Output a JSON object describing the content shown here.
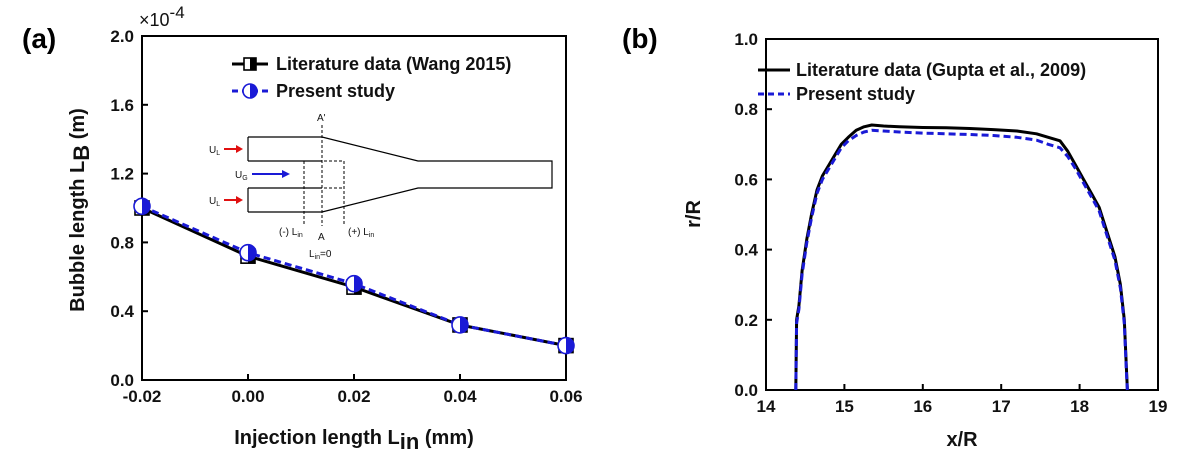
{
  "chart_data": [
    {
      "panel": "(a)",
      "type": "line",
      "xlabel": "Injection length",
      "xlabel_symbol": "L",
      "xlabel_sub": "in",
      "xlabel_unit": "(mm)",
      "ylabel": "Bubble length",
      "ylabel_symbol": "L",
      "ylabel_sub": "B",
      "ylabel_unit": "(m)",
      "y_multiplier": "×10",
      "y_multiplier_exp": "-4",
      "xlim": [
        -0.02,
        0.06
      ],
      "ylim": [
        0.0,
        2.0
      ],
      "xticks": [
        "-0.02",
        "0.00",
        "0.02",
        "0.04",
        "0.06"
      ],
      "xtick_values": [
        -0.02,
        0.0,
        0.02,
        0.04,
        0.06
      ],
      "yticks": [
        "0.0",
        "0.4",
        "0.8",
        "1.2",
        "1.6",
        "2.0"
      ],
      "ytick_values": [
        0.0,
        0.4,
        0.8,
        1.2,
        1.6,
        2.0
      ],
      "legend_position": "top-right",
      "series": [
        {
          "name": "Literature data (Wang 2015)",
          "color": "#000000",
          "style": "solid",
          "marker": "half-filled-square",
          "x": [
            -0.02,
            0.0,
            0.02,
            0.04,
            0.06
          ],
          "y": [
            1.0,
            0.72,
            0.54,
            0.32,
            0.2
          ]
        },
        {
          "name": "Present study",
          "color": "#1a1ad6",
          "style": "dashed",
          "marker": "half-filled-circle",
          "x": [
            -0.02,
            0.0,
            0.02,
            0.04,
            0.06
          ],
          "y": [
            1.01,
            0.74,
            0.56,
            0.32,
            0.2
          ]
        }
      ],
      "inset": {
        "label_top": "A'",
        "label_bottom": "A",
        "label_ul_top": "U",
        "label_ul_top_sub": "L",
        "label_ug": "U",
        "label_ug_sub": "G",
        "label_ul_bottom": "U",
        "label_ul_bottom_sub": "L",
        "label_neg": "(-) L",
        "label_neg_sub": "in",
        "label_pos": "(+) L",
        "label_pos_sub": "in",
        "label_zero": "L",
        "label_zero_sub": "in",
        "label_zero_tail": "=0",
        "arrow_color": "#e01010",
        "gas_arrow_color": "#1a1ad6"
      }
    },
    {
      "panel": "(b)",
      "type": "line",
      "xlabel": "x/R",
      "ylabel": "r/R",
      "xlim": [
        14,
        19
      ],
      "ylim": [
        0.0,
        1.0
      ],
      "xticks": [
        "14",
        "15",
        "16",
        "17",
        "18",
        "19"
      ],
      "xtick_values": [
        14,
        15,
        16,
        17,
        18,
        19
      ],
      "yticks": [
        "0.0",
        "0.2",
        "0.4",
        "0.6",
        "0.8",
        "1.0"
      ],
      "ytick_values": [
        0.0,
        0.2,
        0.4,
        0.6,
        0.8,
        1.0
      ],
      "legend_position": "top-left",
      "series": [
        {
          "name": "Literature data (Gupta et al., 2009)",
          "color": "#000000",
          "style": "solid",
          "x": [
            14.38,
            14.39,
            14.42,
            14.46,
            14.52,
            14.58,
            14.65,
            14.72,
            14.8,
            14.88,
            14.96,
            15.05,
            15.15,
            15.25,
            15.35,
            15.5,
            15.7,
            16.0,
            16.3,
            16.6,
            16.9,
            17.2,
            17.45,
            17.6,
            17.75,
            17.85,
            17.95,
            18.05,
            18.15,
            18.25,
            18.35,
            18.45,
            18.52,
            18.57,
            18.6,
            18.61
          ],
          "y": [
            0.0,
            0.2,
            0.24,
            0.34,
            0.43,
            0.5,
            0.57,
            0.61,
            0.64,
            0.67,
            0.7,
            0.72,
            0.74,
            0.75,
            0.755,
            0.752,
            0.75,
            0.748,
            0.747,
            0.745,
            0.742,
            0.738,
            0.73,
            0.72,
            0.71,
            0.68,
            0.64,
            0.6,
            0.56,
            0.52,
            0.45,
            0.38,
            0.3,
            0.2,
            0.05,
            0.0
          ]
        },
        {
          "name": "Present study",
          "color": "#1a1ad6",
          "style": "dashed",
          "x": [
            14.38,
            14.39,
            14.42,
            14.46,
            14.52,
            14.58,
            14.65,
            14.72,
            14.8,
            14.88,
            14.96,
            15.05,
            15.15,
            15.25,
            15.35,
            15.5,
            15.7,
            16.0,
            16.3,
            16.6,
            16.9,
            17.2,
            17.45,
            17.6,
            17.75,
            17.85,
            17.95,
            18.05,
            18.15,
            18.25,
            18.35,
            18.45,
            18.52,
            18.57,
            18.6,
            18.61
          ],
          "y": [
            0.0,
            0.19,
            0.23,
            0.33,
            0.42,
            0.49,
            0.56,
            0.6,
            0.63,
            0.66,
            0.69,
            0.71,
            0.725,
            0.735,
            0.74,
            0.738,
            0.735,
            0.732,
            0.73,
            0.728,
            0.725,
            0.72,
            0.712,
            0.7,
            0.69,
            0.665,
            0.63,
            0.59,
            0.55,
            0.51,
            0.44,
            0.37,
            0.29,
            0.19,
            0.04,
            0.0
          ]
        }
      ]
    }
  ]
}
